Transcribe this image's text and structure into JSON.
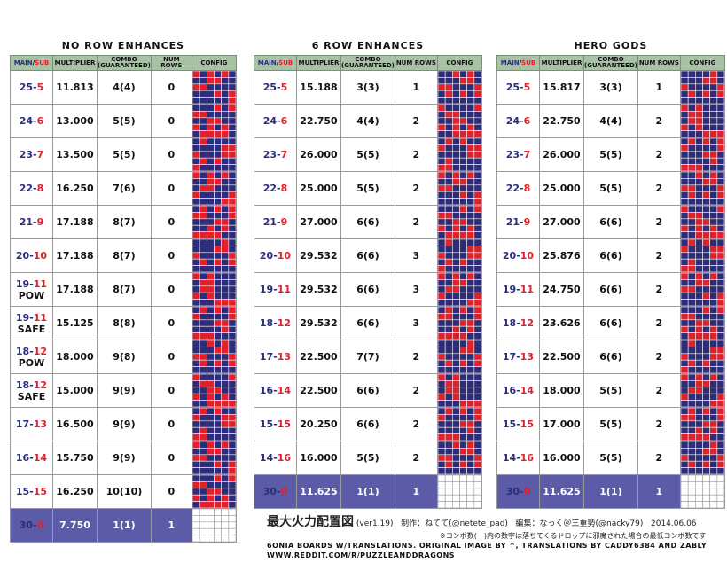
{
  "colors": {
    "header_bg": "#a9c2a6",
    "main": "#2a2f7a",
    "sub": "#e0212c",
    "final_bg": "#5b5ba8",
    "orb_blue": "#2c2c7a",
    "orb_red": "#e0212c"
  },
  "headers": {
    "main": "MAIN",
    "slash": "/",
    "sub": "SUB",
    "multiplier": "MULTIPLIER",
    "combo": "COMBO",
    "combo2": "(GUARANTEED)",
    "numrows": "NUM ROWS",
    "config": "CONFIG"
  },
  "panels": [
    {
      "title": "NO ROW ENHANCES",
      "rows": [
        {
          "main": "25",
          "sub": "5",
          "extra": "",
          "mult": "11.813",
          "combo": "4(4)",
          "num": "0"
        },
        {
          "main": "24",
          "sub": "6",
          "extra": "",
          "mult": "13.000",
          "combo": "5(5)",
          "num": "0"
        },
        {
          "main": "23",
          "sub": "7",
          "extra": "",
          "mult": "13.500",
          "combo": "5(5)",
          "num": "0"
        },
        {
          "main": "22",
          "sub": "8",
          "extra": "",
          "mult": "16.250",
          "combo": "7(6)",
          "num": "0"
        },
        {
          "main": "21",
          "sub": "9",
          "extra": "",
          "mult": "17.188",
          "combo": "8(7)",
          "num": "0"
        },
        {
          "main": "20",
          "sub": "10",
          "extra": "",
          "mult": "17.188",
          "combo": "8(7)",
          "num": "0"
        },
        {
          "main": "19",
          "sub": "11",
          "extra": "POW",
          "mult": "17.188",
          "combo": "8(7)",
          "num": "0"
        },
        {
          "main": "19",
          "sub": "11",
          "extra": "SAFE",
          "mult": "15.125",
          "combo": "8(8)",
          "num": "0"
        },
        {
          "main": "18",
          "sub": "12",
          "extra": "POW",
          "mult": "18.000",
          "combo": "9(8)",
          "num": "0"
        },
        {
          "main": "18",
          "sub": "12",
          "extra": "SAFE",
          "mult": "15.000",
          "combo": "9(9)",
          "num": "0"
        },
        {
          "main": "17",
          "sub": "13",
          "extra": "",
          "mult": "16.500",
          "combo": "9(9)",
          "num": "0"
        },
        {
          "main": "16",
          "sub": "14",
          "extra": "",
          "mult": "15.750",
          "combo": "9(9)",
          "num": "0"
        },
        {
          "main": "15",
          "sub": "15",
          "extra": "",
          "mult": "16.250",
          "combo": "10(10)",
          "num": "0"
        },
        {
          "main": "30",
          "sub": "0",
          "extra": "",
          "mult": "7.750",
          "combo": "1(1)",
          "num": "1",
          "final": true
        }
      ]
    },
    {
      "title": "6 ROW ENHANCES",
      "rows": [
        {
          "main": "25",
          "sub": "5",
          "extra": "",
          "mult": "15.188",
          "combo": "3(3)",
          "num": "1"
        },
        {
          "main": "24",
          "sub": "6",
          "extra": "",
          "mult": "22.750",
          "combo": "4(4)",
          "num": "2"
        },
        {
          "main": "23",
          "sub": "7",
          "extra": "",
          "mult": "26.000",
          "combo": "5(5)",
          "num": "2"
        },
        {
          "main": "22",
          "sub": "8",
          "extra": "",
          "mult": "25.000",
          "combo": "5(5)",
          "num": "2"
        },
        {
          "main": "21",
          "sub": "9",
          "extra": "",
          "mult": "27.000",
          "combo": "6(6)",
          "num": "2"
        },
        {
          "main": "20",
          "sub": "10",
          "extra": "",
          "mult": "29.532",
          "combo": "6(6)",
          "num": "3"
        },
        {
          "main": "19",
          "sub": "11",
          "extra": "",
          "mult": "29.532",
          "combo": "6(6)",
          "num": "3"
        },
        {
          "main": "18",
          "sub": "12",
          "extra": "",
          "mult": "29.532",
          "combo": "6(6)",
          "num": "3"
        },
        {
          "main": "17",
          "sub": "13",
          "extra": "",
          "mult": "22.500",
          "combo": "7(7)",
          "num": "2"
        },
        {
          "main": "16",
          "sub": "14",
          "extra": "",
          "mult": "22.500",
          "combo": "6(6)",
          "num": "2"
        },
        {
          "main": "15",
          "sub": "15",
          "extra": "",
          "mult": "20.250",
          "combo": "6(6)",
          "num": "2"
        },
        {
          "main": "14",
          "sub": "16",
          "extra": "",
          "mult": "16.000",
          "combo": "5(5)",
          "num": "2"
        },
        {
          "main": "30",
          "sub": "0",
          "extra": "",
          "mult": "11.625",
          "combo": "1(1)",
          "num": "1",
          "final": true
        }
      ]
    },
    {
      "title": "HERO GODS",
      "rows": [
        {
          "main": "25",
          "sub": "5",
          "extra": "",
          "mult": "15.817",
          "combo": "3(3)",
          "num": "1"
        },
        {
          "main": "24",
          "sub": "6",
          "extra": "",
          "mult": "22.750",
          "combo": "4(4)",
          "num": "2"
        },
        {
          "main": "23",
          "sub": "7",
          "extra": "",
          "mult": "26.000",
          "combo": "5(5)",
          "num": "2"
        },
        {
          "main": "22",
          "sub": "8",
          "extra": "",
          "mult": "25.000",
          "combo": "5(5)",
          "num": "2"
        },
        {
          "main": "21",
          "sub": "9",
          "extra": "",
          "mult": "27.000",
          "combo": "6(6)",
          "num": "2"
        },
        {
          "main": "20",
          "sub": "10",
          "extra": "",
          "mult": "25.876",
          "combo": "6(6)",
          "num": "2"
        },
        {
          "main": "19",
          "sub": "11",
          "extra": "",
          "mult": "24.750",
          "combo": "6(6)",
          "num": "2"
        },
        {
          "main": "18",
          "sub": "12",
          "extra": "",
          "mult": "23.626",
          "combo": "6(6)",
          "num": "2"
        },
        {
          "main": "17",
          "sub": "13",
          "extra": "",
          "mult": "22.500",
          "combo": "6(6)",
          "num": "2"
        },
        {
          "main": "16",
          "sub": "14",
          "extra": "",
          "mult": "18.000",
          "combo": "5(5)",
          "num": "2"
        },
        {
          "main": "15",
          "sub": "15",
          "extra": "",
          "mult": "17.000",
          "combo": "5(5)",
          "num": "2"
        },
        {
          "main": "14",
          "sub": "16",
          "extra": "",
          "mult": "16.000",
          "combo": "5(5)",
          "num": "2"
        },
        {
          "main": "30",
          "sub": "0",
          "extra": "",
          "mult": "11.625",
          "combo": "1(1)",
          "num": "1",
          "final": true
        }
      ]
    }
  ],
  "credit": {
    "title": "最大火力配置図",
    "version": "(ver1.19)",
    "author": "制作：ねてて(@netete_pad)",
    "editor": "編集：なっく＠三重勢(@nacky79)",
    "date": "2014.06.06"
  },
  "note": "※コンボ数(　)内の数字は落ちてくるドロップに邪魔された場合の最低コンボ数です",
  "footer": {
    "line1": "6ONIA BOARDS W/TRANSLATIONS. ORIGINAL IMAGE BY ^, TRANSLATIONS BY CADDY6384 AND ZABLY",
    "line2": "WWW.REDDIT.COM/R/PUZZLEANDDRAGONS"
  }
}
